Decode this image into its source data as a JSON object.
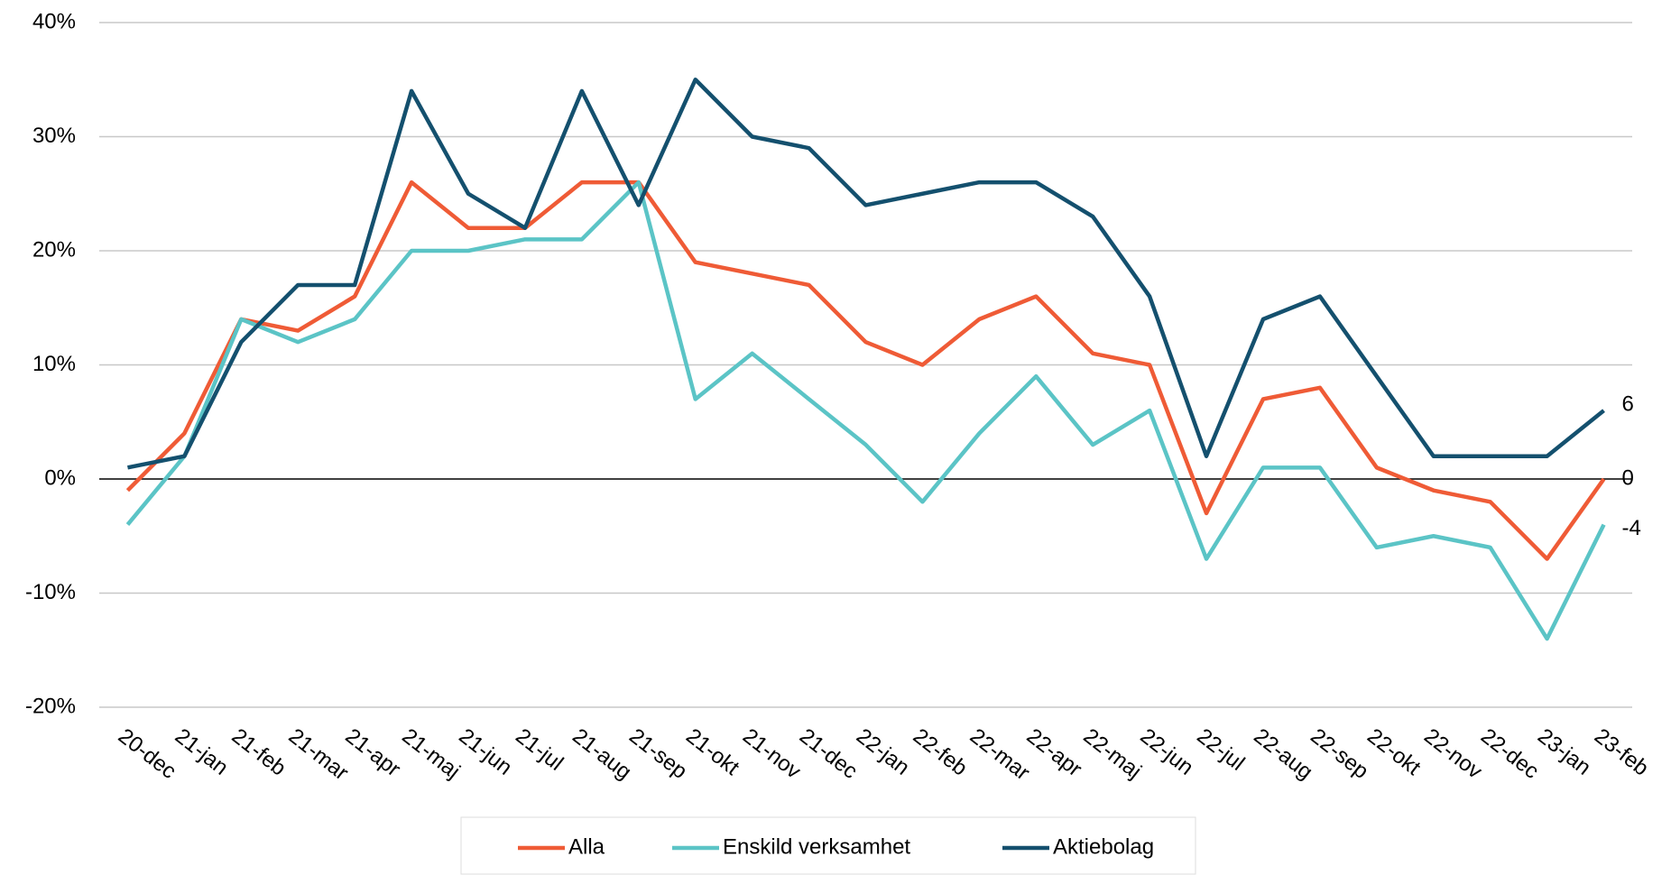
{
  "chart_data": {
    "type": "line",
    "categories": [
      "20-dec",
      "21-jan",
      "21-feb",
      "21-mar",
      "21-apr",
      "21-maj",
      "21-jun",
      "21-jul",
      "21-aug",
      "21-sep",
      "21-okt",
      "21-nov",
      "21-dec",
      "22-jan",
      "22-feb",
      "22-mar",
      "22-apr",
      "22-maj",
      "22-jun",
      "22-jul",
      "22-aug",
      "22-sep",
      "22-okt",
      "22-nov",
      "22-dec",
      "23-jan",
      "23-feb"
    ],
    "series": [
      {
        "name": "Alla",
        "color": "#ef5b36",
        "values": [
          -1,
          4,
          14,
          13,
          16,
          26,
          22,
          22,
          26,
          26,
          19,
          18,
          17,
          12,
          10,
          14,
          16,
          11,
          10,
          -3,
          7,
          8,
          1,
          -1,
          -2,
          -7,
          0
        ]
      },
      {
        "name": "Enskild verksamhet",
        "color": "#5bc4c6",
        "values": [
          -4,
          2,
          14,
          12,
          14,
          20,
          20,
          21,
          21,
          26,
          7,
          11,
          7,
          3,
          -2,
          4,
          9,
          3,
          6,
          -7,
          1,
          1,
          -6,
          -5,
          -6,
          -14,
          -4
        ]
      },
      {
        "name": "Aktiebolag",
        "color": "#14506e",
        "values": [
          1,
          2,
          12,
          17,
          17,
          34,
          25,
          22,
          34,
          24,
          35,
          30,
          29,
          24,
          25,
          26,
          26,
          23,
          16,
          2,
          14,
          16,
          9,
          2,
          2,
          2,
          6
        ]
      }
    ],
    "ylim": [
      -20,
      40
    ],
    "yticks": [
      {
        "value": -20,
        "label": "-20%"
      },
      {
        "value": -10,
        "label": "-10%"
      },
      {
        "value": 0,
        "label": "0%"
      },
      {
        "value": 10,
        "label": "10%"
      },
      {
        "value": 20,
        "label": "20%"
      },
      {
        "value": 30,
        "label": "30%"
      },
      {
        "value": 40,
        "label": "40%"
      }
    ],
    "grid": true,
    "legend": "bottom"
  }
}
